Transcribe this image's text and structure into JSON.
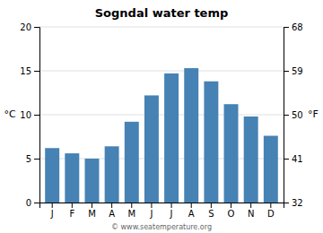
{
  "chart_data": {
    "type": "bar",
    "title": "Sogndal water temp",
    "categories": [
      "J",
      "F",
      "M",
      "A",
      "M",
      "J",
      "J",
      "A",
      "S",
      "O",
      "N",
      "D"
    ],
    "values": [
      6.2,
      5.6,
      5.0,
      6.4,
      9.2,
      12.2,
      14.7,
      15.3,
      13.8,
      11.2,
      9.8,
      7.6
    ],
    "ylim": [
      0,
      20
    ],
    "yticks": [
      0,
      5,
      10,
      15,
      20
    ],
    "y2lim": [
      32,
      68
    ],
    "y2ticks": [
      32,
      41,
      50,
      59,
      68
    ],
    "ylabel": "°C",
    "y2label": "°F",
    "annotations": [
      "© www.seatemperature.org"
    ],
    "grid": true
  }
}
